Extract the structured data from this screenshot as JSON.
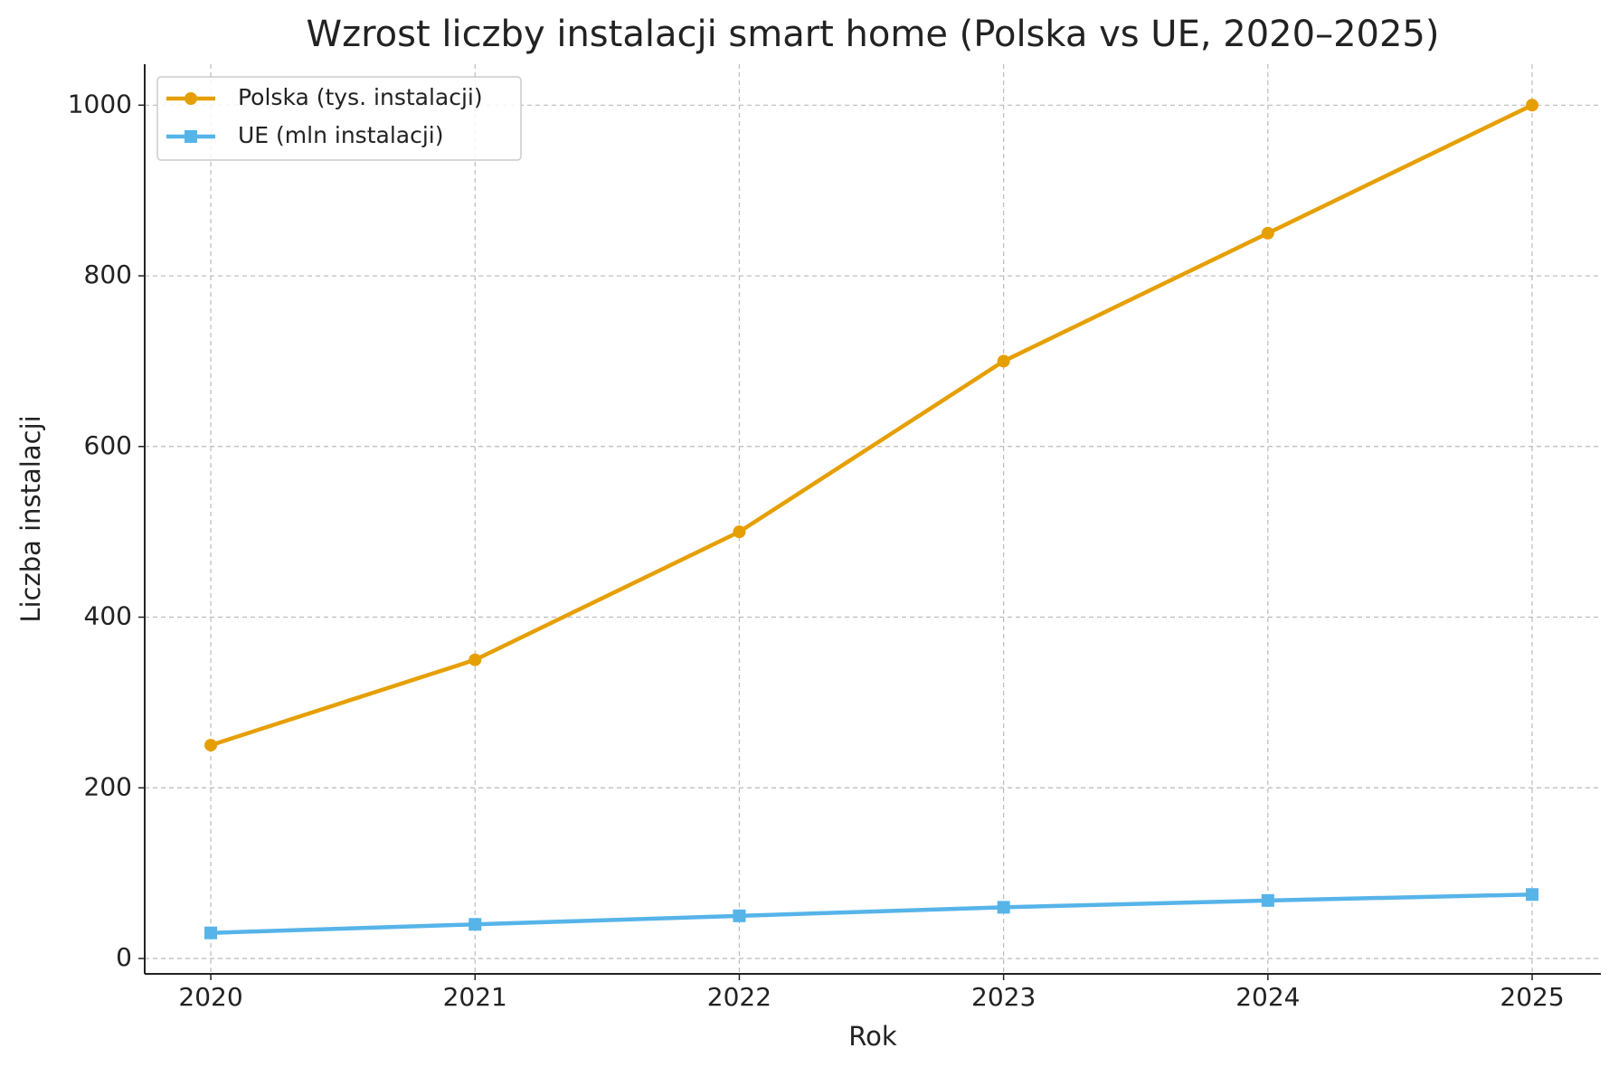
{
  "chart_data": {
    "type": "line",
    "title": "Wzrost liczby instalacji smart home (Polska vs UE, 2020–2025)",
    "x_label": "Rok",
    "y_label": "Liczba instalacji",
    "x": [
      2020,
      2021,
      2022,
      2023,
      2024,
      2025
    ],
    "series": [
      {
        "name": "Polska (tys. instalacji)",
        "color": "#E69F00",
        "marker": "circle",
        "values": [
          250,
          350,
          500,
          700,
          850,
          1000
        ]
      },
      {
        "name": "UE (mln instalacji)",
        "color": "#56B4E9",
        "marker": "square",
        "values": [
          30,
          40,
          50,
          60,
          68,
          75
        ]
      }
    ],
    "xlim": [
      2019.75,
      2025.26
    ],
    "xticks": [
      2020,
      2021,
      2022,
      2023,
      2024,
      2025
    ],
    "ylim": [
      -18,
      1048
    ],
    "yticks": [
      0,
      200,
      400,
      600,
      800,
      1000
    ],
    "grid": true,
    "legend": "upper left"
  }
}
